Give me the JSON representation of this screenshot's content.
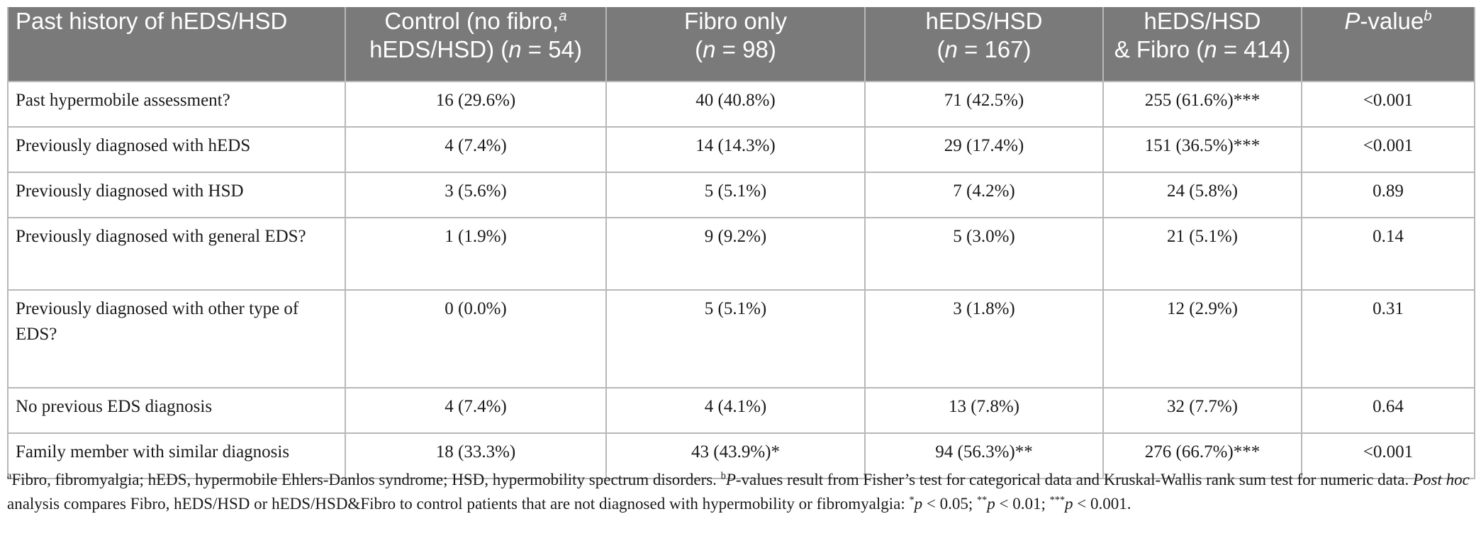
{
  "table": {
    "headers": {
      "col1": "Past history of hEDS/HSD",
      "col2_line1": "Control (no fibro,",
      "col2_sup": "a",
      "col2_line2a": "hEDS/HSD) (",
      "col2_n": "n",
      "col2_line2b": " = 54)",
      "col3_line1": "Fibro only",
      "col3_line2a": "(",
      "col3_n": "n",
      "col3_line2b": " = 98)",
      "col4_line1": "hEDS/HSD",
      "col4_line2a": "(",
      "col4_n": "n",
      "col4_line2b": " = 167)",
      "col5_line1": "hEDS/HSD",
      "col5_line2a": "& Fibro (",
      "col5_n": "n",
      "col5_line2b": " = 414)",
      "col6_p": "P",
      "col6_rest": "-value",
      "col6_sup": "b"
    },
    "rows": [
      [
        "Past hypermobile assessment?",
        "16 (29.6%)",
        "40 (40.8%)",
        "71 (42.5%)",
        "255 (61.6%)***",
        "<0.001"
      ],
      [
        "Previously diagnosed with hEDS",
        "4 (7.4%)",
        "14 (14.3%)",
        "29 (17.4%)",
        "151 (36.5%)***",
        "<0.001"
      ],
      [
        "Previously diagnosed with HSD",
        "3 (5.6%)",
        "5 (5.1%)",
        "7 (4.2%)",
        "24 (5.8%)",
        "0.89"
      ],
      [
        "Previously diagnosed with general EDS?",
        "1 (1.9%)",
        "9 (9.2%)",
        "5 (3.0%)",
        "21 (5.1%)",
        "0.14"
      ],
      [
        "Previously diagnosed with other type of EDS?",
        "0 (0.0%)",
        "5 (5.1%)",
        "3 (1.8%)",
        "12 (2.9%)",
        "0.31"
      ],
      [
        "No previous EDS diagnosis",
        "4 (7.4%)",
        "4 (4.1%)",
        "13 (7.8%)",
        "32 (7.7%)",
        "0.64"
      ],
      [
        "Family member with similar diagnosis",
        "18 (33.3%)",
        "43 (43.9%)*",
        "94 (56.3%)**",
        "276 (66.7%)***",
        "<0.001"
      ]
    ]
  },
  "footnote": {
    "sup_a": "a",
    "text_a": "Fibro, fibromyalgia; hEDS, hypermobile Ehlers-Danlos syndrome; HSD, hypermobility spectrum disorders. ",
    "sup_b": "b",
    "p_italic": "P",
    "text_b": "-values result from Fisher’s test for categorical data and Kruskal-Wallis rank sum test for numeric data. ",
    "post_hoc": "Post hoc",
    "text_c": " analysis compares Fibro, hEDS/HSD or hEDS/HSD&Fibro to control patients that are not diagnosed with hypermobility or fibromyalgia: ",
    "sig1_star": "*",
    "sig1_p": "p",
    "sig1_rest": " < 0.05; ",
    "sig2_star": "**",
    "sig2_p": "p",
    "sig2_rest": " < 0.01; ",
    "sig3_star": "***",
    "sig3_p": "p",
    "sig3_rest": " < 0.001."
  }
}
